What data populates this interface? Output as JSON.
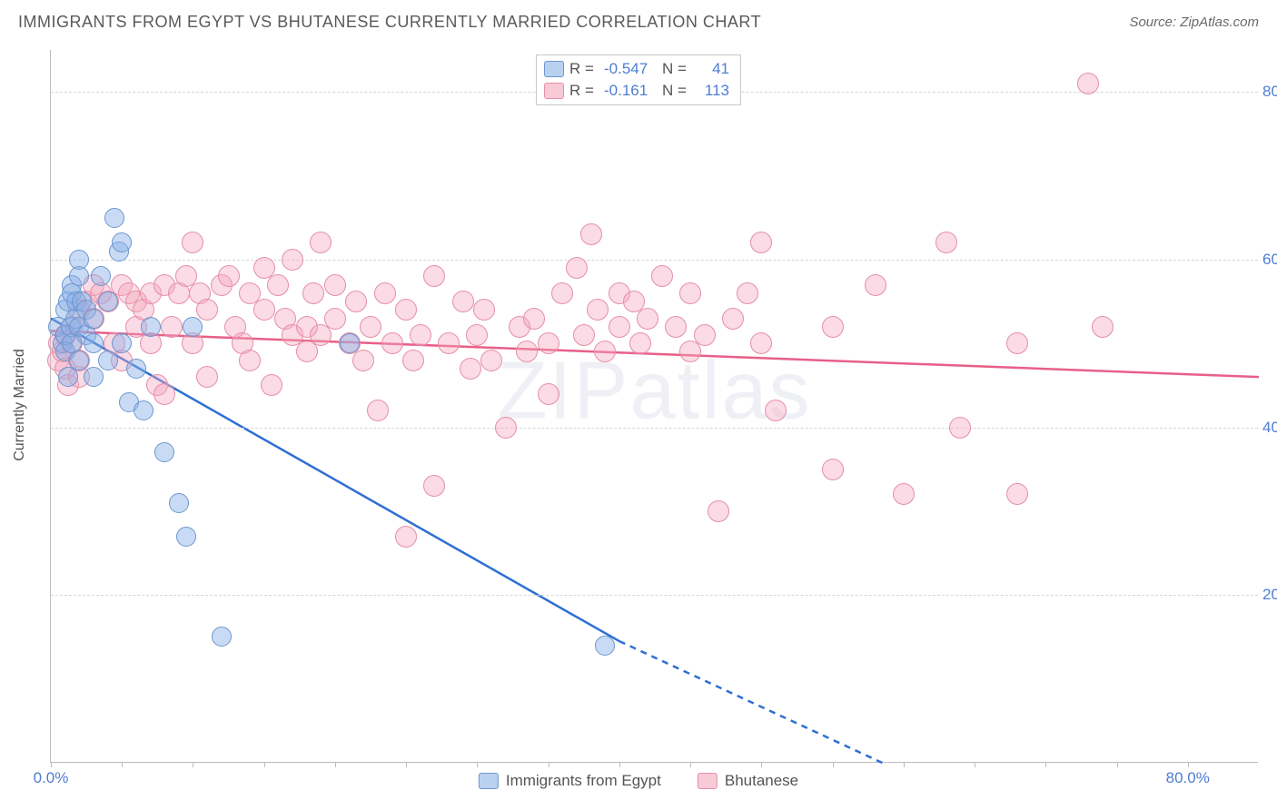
{
  "title": "IMMIGRANTS FROM EGYPT VS BHUTANESE CURRENTLY MARRIED CORRELATION CHART",
  "source": "Source: ZipAtlas.com",
  "ylabel": "Currently Married",
  "watermark_a": "ZIP",
  "watermark_b": "atlas",
  "chart": {
    "type": "scatter",
    "xlim": [
      0,
      85
    ],
    "ylim": [
      0,
      85
    ],
    "xtick_labels": [
      "0.0%",
      "80.0%"
    ],
    "xtick_values": [
      0,
      80
    ],
    "ytick_labels": [
      "20.0%",
      "40.0%",
      "60.0%",
      "80.0%"
    ],
    "ytick_values": [
      20,
      40,
      60,
      80
    ],
    "xgrid_values": [
      0,
      5,
      10,
      15,
      20,
      25,
      30,
      35,
      40,
      45,
      50,
      55,
      60,
      65,
      70,
      75,
      80
    ],
    "background_color": "#ffffff",
    "grid_color": "#d5d5d5"
  },
  "series": {
    "a": {
      "name": "Immigrants from Egypt",
      "color_fill": "rgba(135,175,230,0.45)",
      "color_stroke": "#6b96cf",
      "swatch_fill": "#b9d1ef",
      "swatch_stroke": "#6b96cf",
      "line_color": "#2e6fd4",
      "r_value": "-0.547",
      "n_value": "41",
      "trend": {
        "x1": 0,
        "y1": 53,
        "x2": 40,
        "y2": 14.5
      },
      "trend_ext": {
        "x1": 40,
        "y1": 14.5,
        "x2": 58.5,
        "y2": 0
      },
      "radius": 11,
      "points": [
        [
          0.5,
          52
        ],
        [
          0.8,
          50
        ],
        [
          1,
          54
        ],
        [
          1,
          49
        ],
        [
          1,
          51
        ],
        [
          1.2,
          46
        ],
        [
          1.2,
          55
        ],
        [
          1.4,
          52
        ],
        [
          1.5,
          57
        ],
        [
          1.5,
          50
        ],
        [
          1.5,
          56
        ],
        [
          1.7,
          53
        ],
        [
          1.8,
          55
        ],
        [
          2,
          58
        ],
        [
          2,
          60
        ],
        [
          2,
          52
        ],
        [
          2,
          48
        ],
        [
          2.2,
          55
        ],
        [
          2.5,
          51
        ],
        [
          2.5,
          54
        ],
        [
          3,
          53
        ],
        [
          3,
          46
        ],
        [
          3,
          50
        ],
        [
          3.5,
          58
        ],
        [
          4,
          48
        ],
        [
          4,
          55
        ],
        [
          4.5,
          65
        ],
        [
          4.8,
          61
        ],
        [
          5,
          62
        ],
        [
          5,
          50
        ],
        [
          5.5,
          43
        ],
        [
          6,
          47
        ],
        [
          6.5,
          42
        ],
        [
          7,
          52
        ],
        [
          8,
          37
        ],
        [
          9,
          31
        ],
        [
          9.5,
          27
        ],
        [
          10,
          52
        ],
        [
          12,
          15
        ],
        [
          21,
          50
        ],
        [
          39,
          14
        ]
      ]
    },
    "b": {
      "name": "Bhutanese",
      "color_fill": "rgba(245,165,190,0.40)",
      "color_stroke": "#e58fa8",
      "swatch_fill": "#f8c9d6",
      "swatch_stroke": "#e58fa8",
      "line_color": "#e85f88",
      "r_value": "-0.161",
      "n_value": "113",
      "trend": {
        "x1": 0,
        "y1": 51.5,
        "x2": 85,
        "y2": 46
      },
      "radius": 12,
      "points": [
        [
          0.5,
          48
        ],
        [
          0.6,
          50
        ],
        [
          0.8,
          49
        ],
        [
          1,
          47
        ],
        [
          1,
          51
        ],
        [
          1.2,
          45
        ],
        [
          1.5,
          50
        ],
        [
          1.5,
          52
        ],
        [
          2,
          46
        ],
        [
          2,
          48
        ],
        [
          2,
          54
        ],
        [
          2.5,
          55
        ],
        [
          3,
          57
        ],
        [
          3,
          53
        ],
        [
          3.5,
          56
        ],
        [
          4,
          55
        ],
        [
          4.5,
          50
        ],
        [
          5,
          57
        ],
        [
          5,
          48
        ],
        [
          5.5,
          56
        ],
        [
          6,
          52
        ],
        [
          6,
          55
        ],
        [
          6.5,
          54
        ],
        [
          7,
          56
        ],
        [
          7,
          50
        ],
        [
          7.5,
          45
        ],
        [
          8,
          44
        ],
        [
          8,
          57
        ],
        [
          8.5,
          52
        ],
        [
          9,
          56
        ],
        [
          9.5,
          58
        ],
        [
          10,
          62
        ],
        [
          10,
          50
        ],
        [
          10.5,
          56
        ],
        [
          11,
          54
        ],
        [
          11,
          46
        ],
        [
          12,
          57
        ],
        [
          12.5,
          58
        ],
        [
          13,
          52
        ],
        [
          13.5,
          50
        ],
        [
          14,
          56
        ],
        [
          14,
          48
        ],
        [
          15,
          54
        ],
        [
          15,
          59
        ],
        [
          15.5,
          45
        ],
        [
          16,
          57
        ],
        [
          16.5,
          53
        ],
        [
          17,
          60
        ],
        [
          17,
          51
        ],
        [
          18,
          52
        ],
        [
          18,
          49
        ],
        [
          18.5,
          56
        ],
        [
          19,
          62
        ],
        [
          19,
          51
        ],
        [
          20,
          53
        ],
        [
          20,
          57
        ],
        [
          21,
          50
        ],
        [
          21.5,
          55
        ],
        [
          22,
          48
        ],
        [
          22.5,
          52
        ],
        [
          23,
          42
        ],
        [
          23.5,
          56
        ],
        [
          24,
          50
        ],
        [
          25,
          27
        ],
        [
          25,
          54
        ],
        [
          25.5,
          48
        ],
        [
          26,
          51
        ],
        [
          27,
          58
        ],
        [
          27,
          33
        ],
        [
          28,
          50
        ],
        [
          29,
          55
        ],
        [
          29.5,
          47
        ],
        [
          30,
          51
        ],
        [
          30.5,
          54
        ],
        [
          31,
          48
        ],
        [
          32,
          40
        ],
        [
          33,
          52
        ],
        [
          33.5,
          49
        ],
        [
          34,
          53
        ],
        [
          35,
          50
        ],
        [
          35,
          44
        ],
        [
          36,
          56
        ],
        [
          37,
          59
        ],
        [
          37.5,
          51
        ],
        [
          38,
          63
        ],
        [
          38.5,
          54
        ],
        [
          39,
          49
        ],
        [
          40,
          52
        ],
        [
          40,
          56
        ],
        [
          41,
          55
        ],
        [
          41.5,
          50
        ],
        [
          42,
          53
        ],
        [
          43,
          58
        ],
        [
          44,
          52
        ],
        [
          45,
          49
        ],
        [
          45,
          56
        ],
        [
          46,
          51
        ],
        [
          47,
          30
        ],
        [
          48,
          53
        ],
        [
          49,
          56
        ],
        [
          50,
          62
        ],
        [
          50,
          50
        ],
        [
          51,
          42
        ],
        [
          55,
          35
        ],
        [
          55,
          52
        ],
        [
          58,
          57
        ],
        [
          60,
          32
        ],
        [
          63,
          62
        ],
        [
          64,
          40
        ],
        [
          68,
          32
        ],
        [
          68,
          50
        ],
        [
          73,
          81
        ],
        [
          74,
          52
        ]
      ]
    }
  },
  "legend_top_labels": {
    "R": "R =",
    "N": "N ="
  }
}
